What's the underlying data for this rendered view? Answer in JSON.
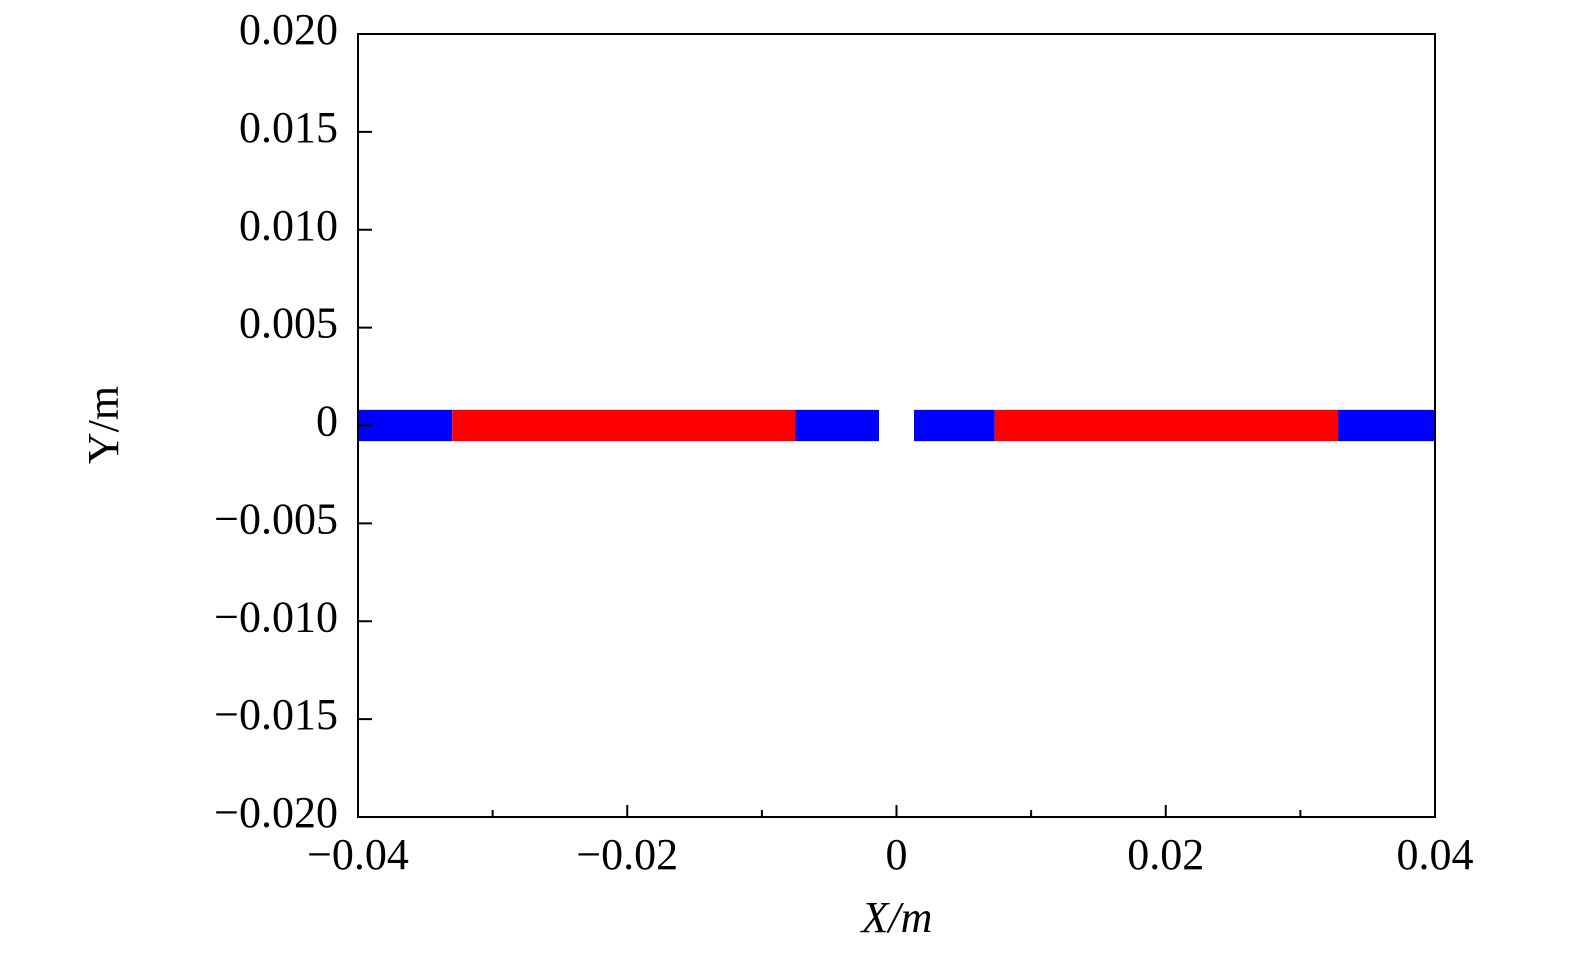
{
  "chart_data": {
    "type": "band",
    "x_label": "X/m",
    "y_label": "Y/m",
    "xlim": [
      -0.04,
      0.04
    ],
    "xticks": [
      {
        "value": -0.04,
        "label": "−0.04"
      },
      {
        "value": -0.02,
        "label": "−0.02"
      },
      0,
      0.02,
      0.04
    ],
    "xminor_ticks": [
      -0.03,
      -0.01,
      0.01,
      0.03
    ],
    "ylim": [
      -0.02,
      0.02
    ],
    "yticks": [
      {
        "value": -0.02,
        "label": "−0.020"
      },
      {
        "value": -0.015,
        "label": "−0.015"
      },
      {
        "value": -0.01,
        "label": "−0.010"
      },
      {
        "value": -0.005,
        "label": "−0.005"
      },
      0,
      {
        "value": 0.005,
        "label": "0.005"
      },
      {
        "value": 0.01,
        "label": "0.010"
      },
      {
        "value": 0.015,
        "label": "0.015"
      },
      {
        "value": 0.02,
        "label": "0.020"
      }
    ],
    "series": [
      {
        "color": "#0000ff",
        "x": [
          -0.04,
          -0.033
        ],
        "y": [
          -0.0008,
          0.0008
        ]
      },
      {
        "color": "#ff0000",
        "x": [
          -0.033,
          -0.0075
        ],
        "y": [
          -0.0008,
          0.0008
        ]
      },
      {
        "color": "#0000ff",
        "x": [
          -0.0075,
          -0.0013
        ],
        "y": [
          -0.0008,
          0.0008
        ]
      },
      {
        "color": "#0000ff",
        "x": [
          0.0013,
          0.0073
        ],
        "y": [
          -0.0008,
          0.0008
        ]
      },
      {
        "color": "#ff0000",
        "x": [
          0.0073,
          0.0328
        ],
        "y": [
          -0.0008,
          0.0008
        ]
      },
      {
        "color": "#0000ff",
        "x": [
          0.0328,
          0.04
        ],
        "y": [
          -0.0008,
          0.0008
        ]
      }
    ]
  }
}
